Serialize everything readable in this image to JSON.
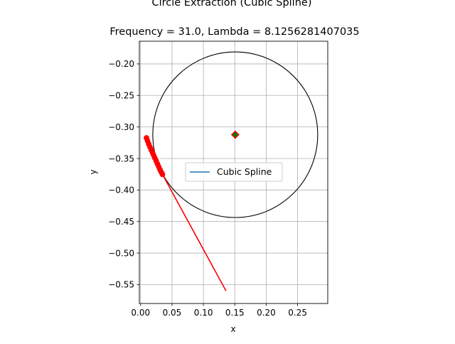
{
  "chart_data": {
    "type": "line",
    "title": "Circle Extraction (Cubic Spline)",
    "subtitle": "Frequency = 31.0, Lambda = 8.1256281407035",
    "xlabel": "x",
    "ylabel": "y",
    "xlim": [
      -0.002,
      0.298
    ],
    "ylim": [
      -0.58,
      -0.164
    ],
    "xticks": [
      0.0,
      0.05,
      0.1,
      0.15,
      0.2,
      0.25
    ],
    "xtick_labels": [
      "0.00",
      "0.05",
      "0.10",
      "0.15",
      "0.20",
      "0.25"
    ],
    "yticks": [
      -0.2,
      -0.25,
      -0.3,
      -0.35,
      -0.4,
      -0.45,
      -0.5,
      -0.55
    ],
    "ytick_labels": [
      "−0.20",
      "−0.25",
      "−0.30",
      "−0.35",
      "−0.40",
      "−0.45",
      "−0.50",
      "−0.55"
    ],
    "grid": true,
    "legend": {
      "placement": "center",
      "entries": [
        {
          "label": "Cubic Spline",
          "color": "#1f77b4"
        }
      ]
    },
    "circle": {
      "cx": 0.1507,
      "cy": -0.3123,
      "r": 0.1313,
      "color": "#000000"
    },
    "center_marker": {
      "x": 0.1507,
      "y": -0.3123,
      "face_color": "#008000",
      "edge_color": "#ff0000",
      "shape": "diamond"
    },
    "spline_points": {
      "color": "#ff0000",
      "x": [
        0.0093,
        0.011,
        0.0128,
        0.0148,
        0.0168,
        0.0188,
        0.0208,
        0.0228,
        0.0248,
        0.0268,
        0.0288,
        0.0308,
        0.0328,
        0.0348
      ],
      "y": [
        -0.3173,
        -0.322,
        -0.3268,
        -0.3315,
        -0.336,
        -0.3405,
        -0.345,
        -0.3495,
        -0.354,
        -0.3585,
        -0.363,
        -0.3675,
        -0.3715,
        -0.3752
      ]
    },
    "spline_line": {
      "name": "Cubic Spline",
      "color": "#1f77b4",
      "x": [
        0.0093,
        0.0348
      ],
      "y": [
        -0.3173,
        -0.3752
      ]
    },
    "tangent_line": {
      "color": "#ff0000",
      "x": [
        0.0093,
        0.0348,
        0.136
      ],
      "y": [
        -0.3173,
        -0.3752,
        -0.56
      ]
    }
  }
}
